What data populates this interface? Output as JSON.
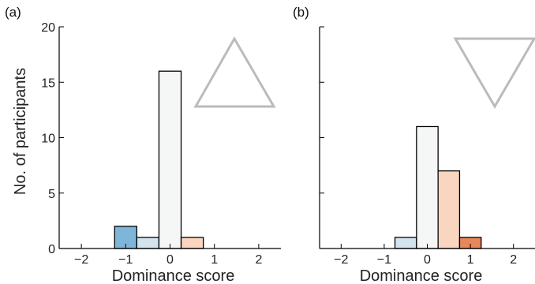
{
  "chart_data": [
    {
      "type": "bar",
      "panel_label": "(a)",
      "xlabel": "Dominance score",
      "ylabel": "No. of participants",
      "xlim": [
        -2.5,
        2.5
      ],
      "ylim": [
        0,
        20
      ],
      "xticks": [
        -2,
        -1,
        0,
        1,
        2
      ],
      "yticks": [
        0,
        5,
        10,
        15,
        20
      ],
      "bin_width": 0.5,
      "bars": [
        {
          "x": -1.0,
          "value": 2,
          "color": "#7fb6d8"
        },
        {
          "x": -0.5,
          "value": 1,
          "color": "#d3e4ef"
        },
        {
          "x": 0.0,
          "value": 16,
          "color": "#f5f7f7"
        },
        {
          "x": 0.5,
          "value": 1,
          "color": "#fad5c0"
        }
      ],
      "glyph": "triangle-up",
      "grid": false
    },
    {
      "type": "bar",
      "panel_label": "(b)",
      "xlabel": "Dominance score",
      "ylabel": "",
      "xlim": [
        -2.5,
        2.5
      ],
      "ylim": [
        0,
        20
      ],
      "xticks": [
        -2,
        -1,
        0,
        1,
        2
      ],
      "yticks": [
        0,
        5,
        10,
        15,
        20
      ],
      "bin_width": 0.5,
      "bars": [
        {
          "x": -0.5,
          "value": 1,
          "color": "#d3e4ef"
        },
        {
          "x": 0.0,
          "value": 11,
          "color": "#f5f7f7"
        },
        {
          "x": 0.5,
          "value": 7,
          "color": "#fad5c0"
        },
        {
          "x": 1.0,
          "value": 1,
          "color": "#e8875a"
        }
      ],
      "glyph": "triangle-down",
      "grid": false
    }
  ]
}
